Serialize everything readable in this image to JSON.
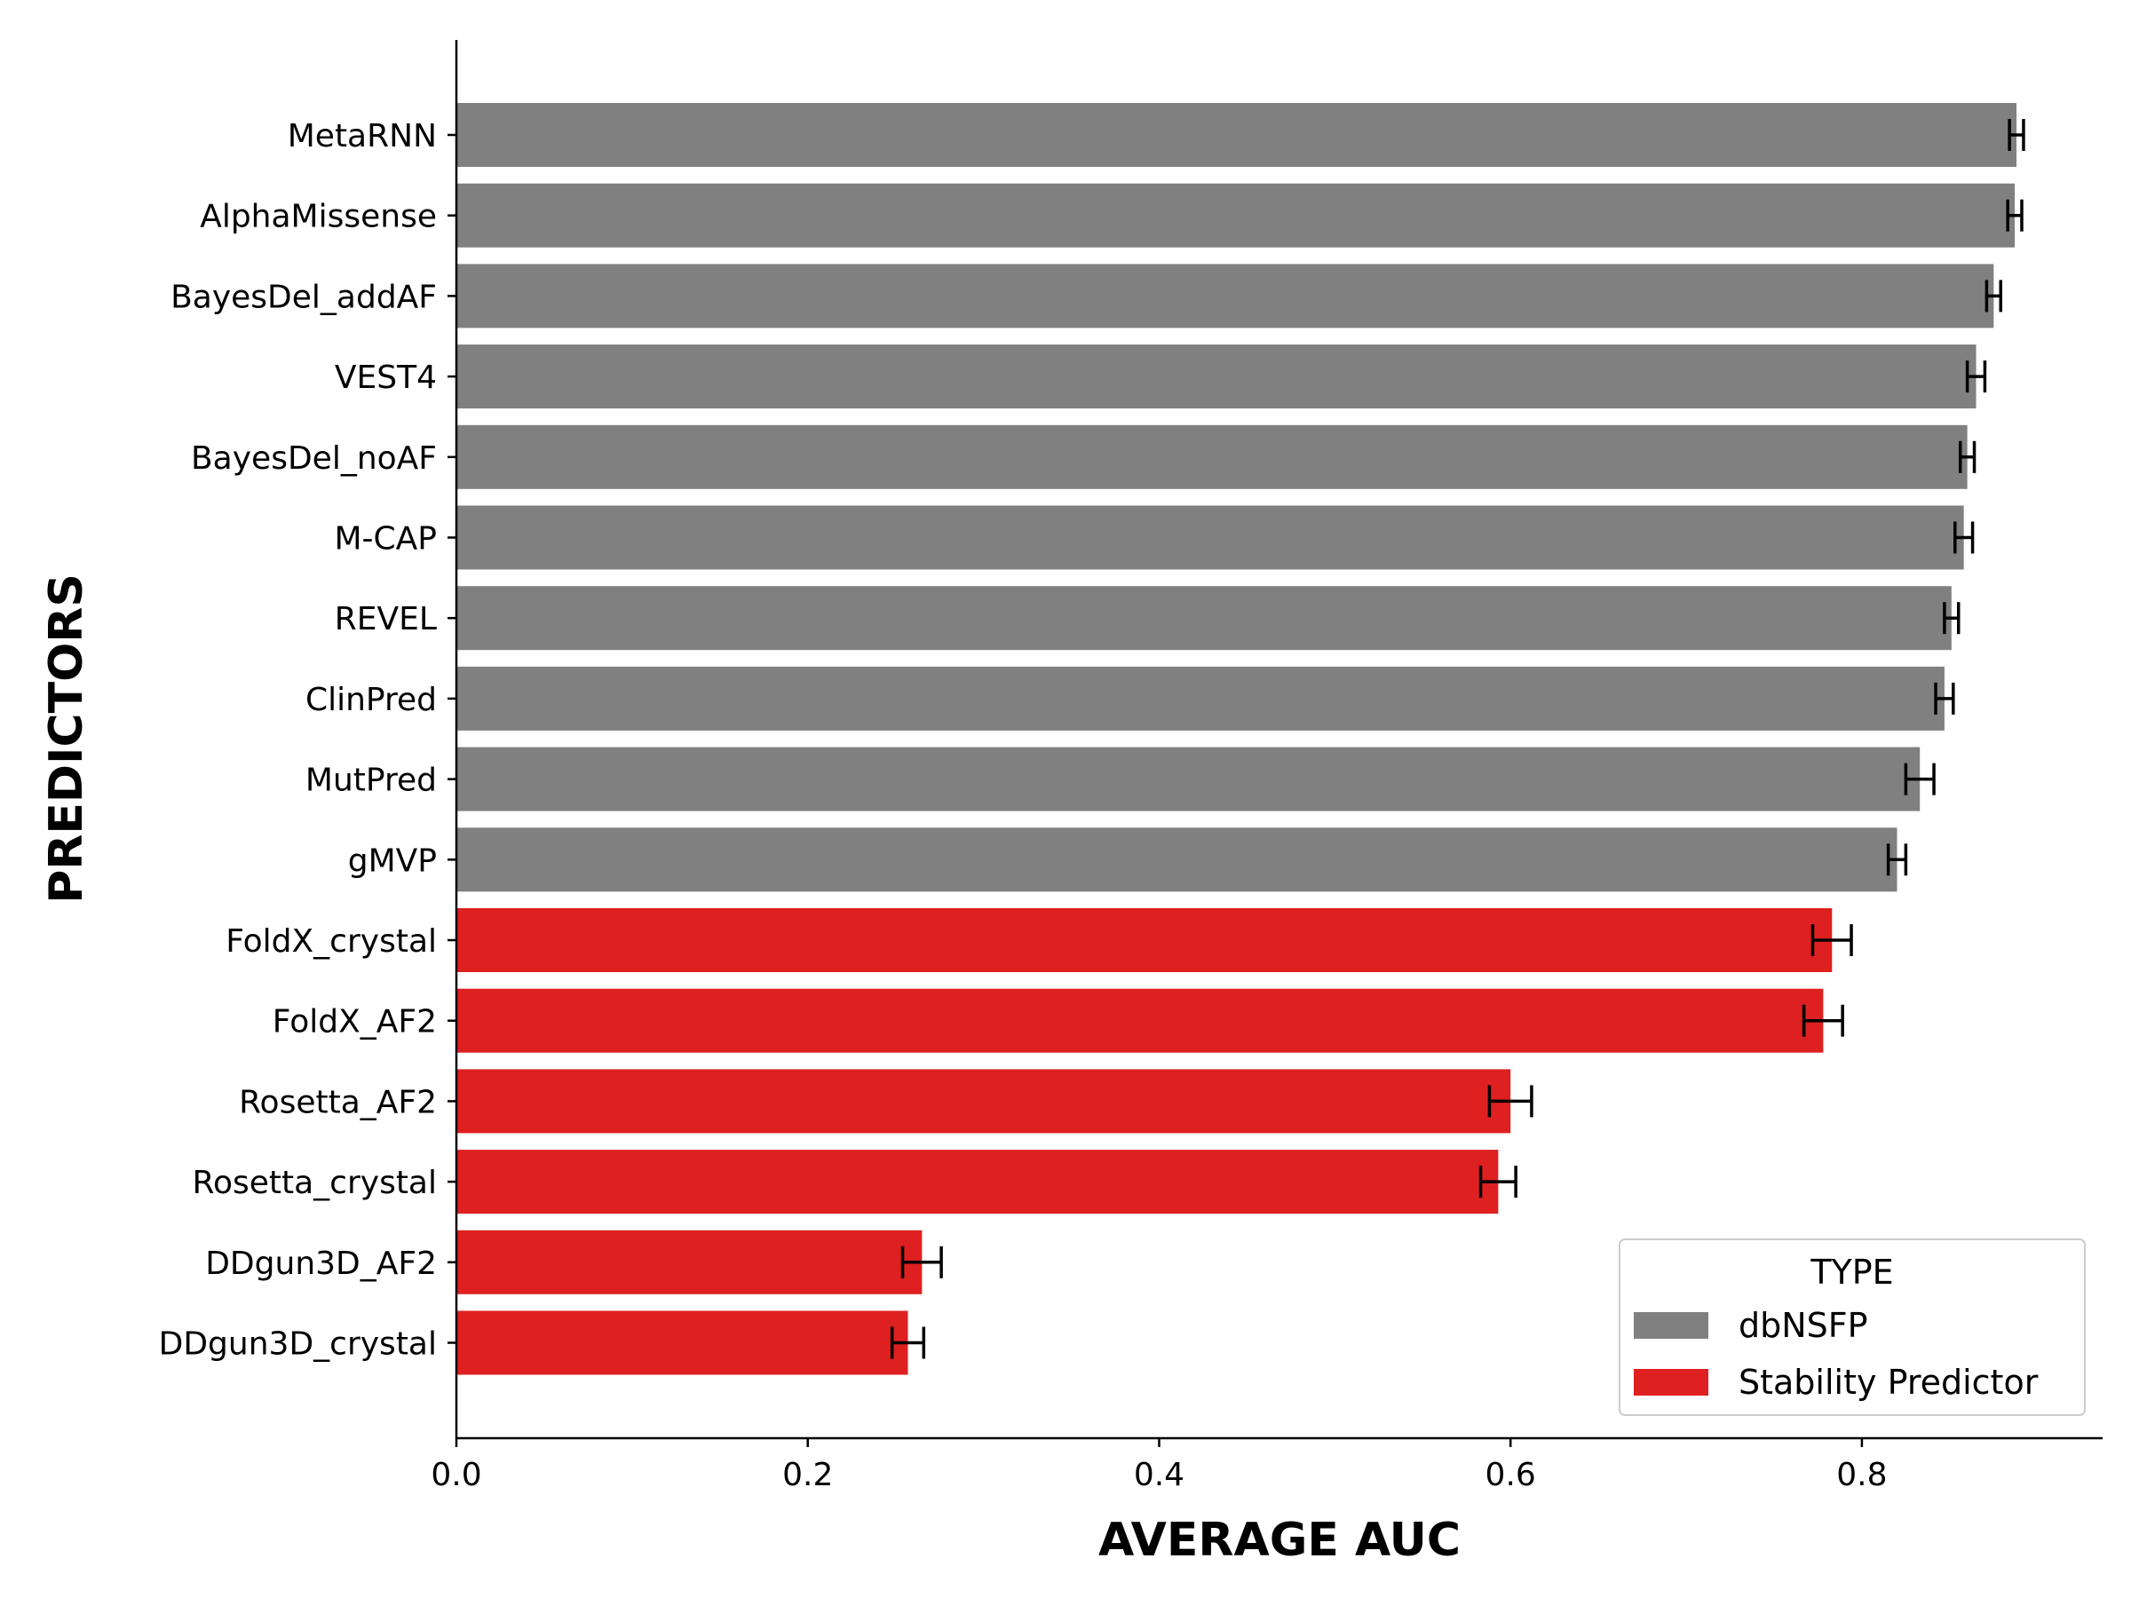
{
  "chart_data": {
    "type": "bar",
    "orientation": "horizontal",
    "xlabel": "AVERAGE AUC",
    "ylabel": "PREDICTORS",
    "xlim": [
      0.0,
      0.937
    ],
    "xticks": [
      {
        "value": 0.0,
        "label": "0.0"
      },
      {
        "value": 0.2,
        "label": "0.2"
      },
      {
        "value": 0.4,
        "label": "0.4"
      },
      {
        "value": 0.6,
        "label": "0.6"
      },
      {
        "value": 0.8,
        "label": "0.8"
      }
    ],
    "grid": false,
    "legend": {
      "title": "TYPE",
      "placement": "lower-right",
      "entries": [
        {
          "label": "dbNSFP",
          "color": "#808080"
        },
        {
          "label": "Stability Predictor",
          "color": "#de2020"
        }
      ]
    },
    "bars": [
      {
        "label": "MetaRNN",
        "value": 0.888,
        "error": 0.004,
        "type": "dbNSFP"
      },
      {
        "label": "AlphaMissense",
        "value": 0.887,
        "error": 0.004,
        "type": "dbNSFP"
      },
      {
        "label": "BayesDel_addAF",
        "value": 0.875,
        "error": 0.004,
        "type": "dbNSFP"
      },
      {
        "label": "VEST4",
        "value": 0.865,
        "error": 0.005,
        "type": "dbNSFP"
      },
      {
        "label": "BayesDel_noAF",
        "value": 0.86,
        "error": 0.004,
        "type": "dbNSFP"
      },
      {
        "label": "M-CAP",
        "value": 0.858,
        "error": 0.005,
        "type": "dbNSFP"
      },
      {
        "label": "REVEL",
        "value": 0.851,
        "error": 0.004,
        "type": "dbNSFP"
      },
      {
        "label": "ClinPred",
        "value": 0.847,
        "error": 0.005,
        "type": "dbNSFP"
      },
      {
        "label": "MutPred",
        "value": 0.833,
        "error": 0.008,
        "type": "dbNSFP"
      },
      {
        "label": "gMVP",
        "value": 0.82,
        "error": 0.005,
        "type": "dbNSFP"
      },
      {
        "label": "FoldX_crystal",
        "value": 0.783,
        "error": 0.011,
        "type": "Stability Predictor"
      },
      {
        "label": "FoldX_AF2",
        "value": 0.778,
        "error": 0.011,
        "type": "Stability Predictor"
      },
      {
        "label": "Rosetta_AF2",
        "value": 0.6,
        "error": 0.012,
        "type": "Stability Predictor"
      },
      {
        "label": "Rosetta_crystal",
        "value": 0.593,
        "error": 0.01,
        "type": "Stability Predictor"
      },
      {
        "label": "DDgun3D_AF2",
        "value": 0.265,
        "error": 0.011,
        "type": "Stability Predictor"
      },
      {
        "label": "DDgun3D_crystal",
        "value": 0.257,
        "error": 0.009,
        "type": "Stability Predictor"
      }
    ]
  }
}
